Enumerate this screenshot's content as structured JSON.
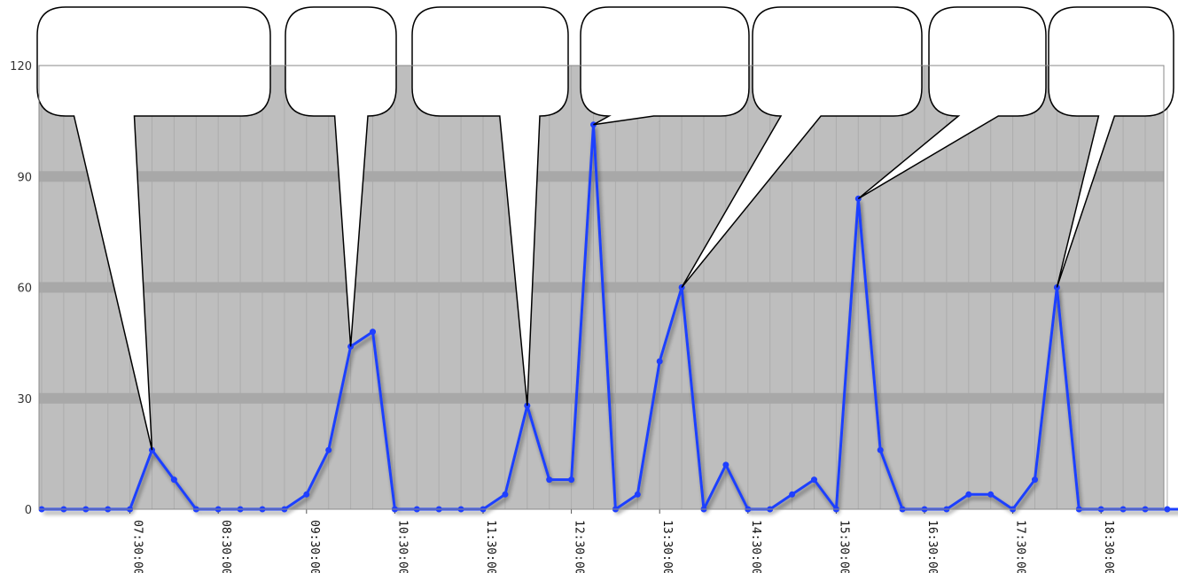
{
  "chart_data": {
    "type": "line",
    "colors": {
      "line": "#1f3fff",
      "plot_bg": "#bebebe",
      "major_grid": "#a8a8a8",
      "minor_grid": "#acacac"
    },
    "ylim": [
      0,
      120
    ],
    "yticks": [
      0,
      30,
      60,
      90,
      120
    ],
    "xticks": [
      "07:30:00",
      "08:30:00",
      "09:30:00",
      "10:30:00",
      "11:30:00",
      "12:30:00",
      "13:30:00",
      "14:30:00",
      "15:30:00",
      "16:30:00",
      "17:30:00",
      "18:30:00"
    ],
    "grid": true,
    "series": [
      {
        "x": [
          "06:30",
          "06:45",
          "07:00",
          "07:15",
          "07:30",
          "07:45",
          "08:00",
          "08:15",
          "08:30",
          "08:45",
          "09:00",
          "09:15",
          "09:30",
          "09:45",
          "10:00",
          "10:15",
          "10:30",
          "10:45",
          "11:00",
          "11:15",
          "11:30",
          "11:45",
          "12:00",
          "12:15",
          "12:30",
          "12:45",
          "13:00",
          "13:15",
          "13:30",
          "13:45",
          "14:00",
          "14:15",
          "14:30",
          "14:45",
          "15:00",
          "15:15",
          "15:30",
          "15:45",
          "16:00",
          "16:15",
          "16:30",
          "16:45",
          "17:00",
          "17:15",
          "17:30",
          "17:45",
          "18:00",
          "18:15",
          "18:30",
          "18:45",
          "19:00",
          "19:15",
          "19:30"
        ],
        "values": [
          0,
          0,
          0,
          0,
          0,
          16,
          8,
          0,
          0,
          0,
          0,
          0,
          4,
          16,
          44,
          48,
          0,
          0,
          0,
          0,
          0,
          4,
          28,
          8,
          8,
          104,
          0,
          4,
          40,
          60,
          0,
          12,
          0,
          0,
          4,
          8,
          0,
          84,
          16,
          0,
          0,
          0,
          4,
          4,
          0,
          8,
          60,
          0,
          0,
          0,
          0,
          0,
          0
        ]
      }
    ],
    "callouts": [
      {
        "name": "callout-1",
        "x": "07:45",
        "value": 16,
        "text": ""
      },
      {
        "name": "callout-2",
        "x": "10:00",
        "value": 44,
        "text": ""
      },
      {
        "name": "callout-3",
        "x": "12:00",
        "value": 28,
        "text": ""
      },
      {
        "name": "callout-4",
        "x": "12:45",
        "value": 104,
        "text": ""
      },
      {
        "name": "callout-5",
        "x": "13:45",
        "value": 60,
        "text": ""
      },
      {
        "name": "callout-6",
        "x": "15:45",
        "value": 84,
        "text": ""
      },
      {
        "name": "callout-7",
        "x": "18:00",
        "value": 60,
        "text": ""
      }
    ]
  }
}
